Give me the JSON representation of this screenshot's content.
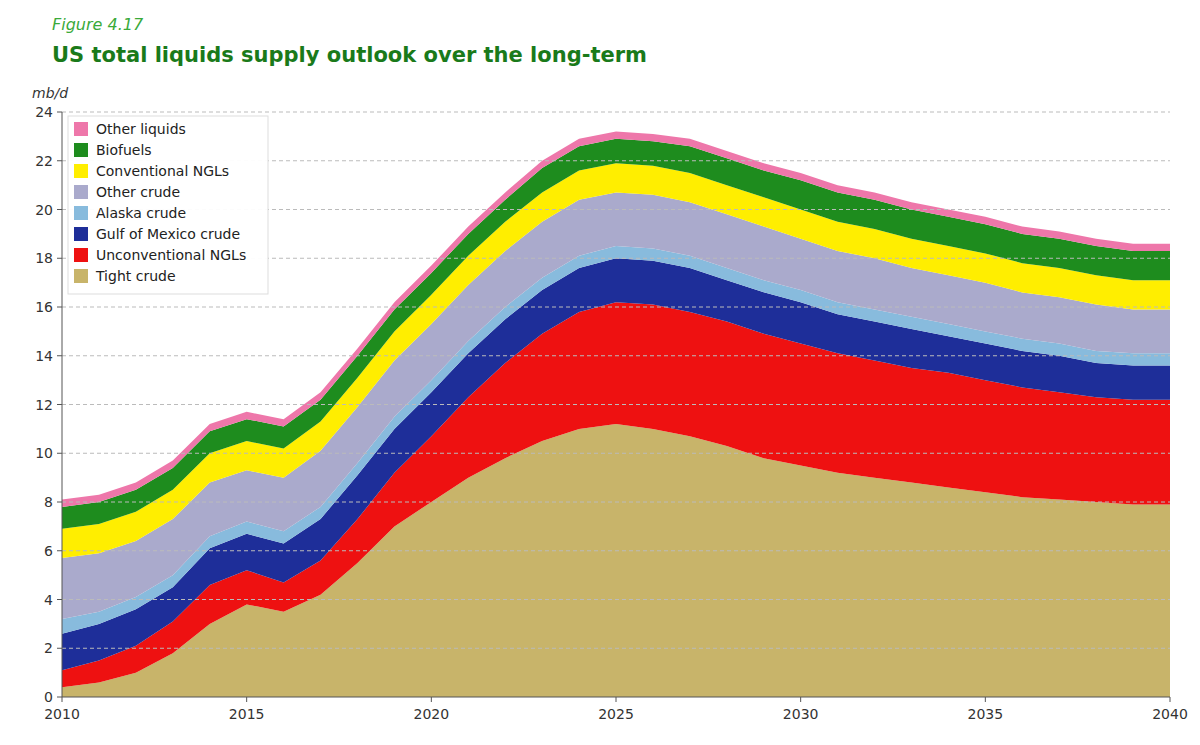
{
  "chart_data": {
    "type": "area",
    "stacked": true,
    "subtitle": "Figure 4.17",
    "title": "US total liquids supply outlook over the long-term",
    "y_label": "mb/d",
    "x": [
      2010,
      2011,
      2012,
      2013,
      2014,
      2015,
      2016,
      2017,
      2018,
      2019,
      2020,
      2021,
      2022,
      2023,
      2024,
      2025,
      2026,
      2027,
      2028,
      2029,
      2030,
      2031,
      2032,
      2033,
      2034,
      2035,
      2036,
      2037,
      2038,
      2039,
      2040
    ],
    "series": [
      {
        "name": "Tight crude",
        "color": "#C8B46A",
        "values": [
          0.4,
          0.6,
          1.0,
          1.8,
          3.0,
          3.8,
          3.5,
          4.2,
          5.5,
          7.0,
          8.0,
          9.0,
          9.8,
          10.5,
          11.0,
          11.2,
          11.0,
          10.7,
          10.3,
          9.8,
          9.5,
          9.2,
          9.0,
          8.8,
          8.6,
          8.4,
          8.2,
          8.1,
          8.0,
          7.9,
          7.9
        ]
      },
      {
        "name": "Unconventional NGLs",
        "color": "#EE1111",
        "values": [
          0.7,
          0.9,
          1.1,
          1.3,
          1.6,
          1.4,
          1.2,
          1.4,
          1.8,
          2.2,
          2.7,
          3.3,
          3.9,
          4.4,
          4.8,
          5.0,
          5.1,
          5.1,
          5.1,
          5.1,
          5.0,
          4.9,
          4.8,
          4.7,
          4.7,
          4.6,
          4.5,
          4.4,
          4.3,
          4.3,
          4.3
        ]
      },
      {
        "name": "Gulf of Mexico crude",
        "color": "#1E2E99",
        "values": [
          1.5,
          1.5,
          1.5,
          1.4,
          1.5,
          1.5,
          1.6,
          1.7,
          1.8,
          1.8,
          1.8,
          1.8,
          1.8,
          1.8,
          1.8,
          1.8,
          1.8,
          1.8,
          1.7,
          1.7,
          1.7,
          1.6,
          1.6,
          1.6,
          1.5,
          1.5,
          1.5,
          1.5,
          1.4,
          1.4,
          1.4
        ]
      },
      {
        "name": "Alaska crude",
        "color": "#88BBDD",
        "values": [
          0.6,
          0.5,
          0.5,
          0.5,
          0.5,
          0.5,
          0.5,
          0.5,
          0.5,
          0.5,
          0.5,
          0.5,
          0.5,
          0.5,
          0.5,
          0.5,
          0.5,
          0.5,
          0.5,
          0.5,
          0.5,
          0.5,
          0.5,
          0.5,
          0.5,
          0.5,
          0.5,
          0.5,
          0.5,
          0.5,
          0.5
        ]
      },
      {
        "name": "Other crude",
        "color": "#AAAACC",
        "values": [
          2.5,
          2.4,
          2.3,
          2.3,
          2.2,
          2.1,
          2.2,
          2.3,
          2.3,
          2.3,
          2.3,
          2.3,
          2.3,
          2.3,
          2.3,
          2.2,
          2.2,
          2.2,
          2.2,
          2.2,
          2.1,
          2.1,
          2.1,
          2.0,
          2.0,
          2.0,
          1.9,
          1.9,
          1.9,
          1.8,
          1.8
        ]
      },
      {
        "name": "Conventional NGLs",
        "color": "#FFEE00",
        "values": [
          1.2,
          1.2,
          1.2,
          1.2,
          1.2,
          1.2,
          1.2,
          1.2,
          1.2,
          1.2,
          1.2,
          1.2,
          1.2,
          1.2,
          1.2,
          1.2,
          1.2,
          1.2,
          1.2,
          1.2,
          1.2,
          1.2,
          1.2,
          1.2,
          1.2,
          1.2,
          1.2,
          1.2,
          1.2,
          1.2,
          1.2
        ]
      },
      {
        "name": "Biofuels",
        "color": "#1E8C1E",
        "values": [
          0.9,
          0.9,
          0.9,
          0.9,
          0.9,
          0.9,
          0.9,
          0.9,
          0.9,
          0.9,
          0.9,
          0.9,
          0.9,
          1.0,
          1.0,
          1.0,
          1.0,
          1.1,
          1.1,
          1.1,
          1.2,
          1.2,
          1.2,
          1.2,
          1.2,
          1.2,
          1.2,
          1.2,
          1.2,
          1.2,
          1.2
        ]
      },
      {
        "name": "Other liquids",
        "color": "#EE77AA",
        "values": [
          0.3,
          0.3,
          0.3,
          0.3,
          0.3,
          0.3,
          0.3,
          0.3,
          0.3,
          0.3,
          0.3,
          0.3,
          0.3,
          0.3,
          0.3,
          0.3,
          0.3,
          0.3,
          0.3,
          0.3,
          0.3,
          0.3,
          0.3,
          0.3,
          0.3,
          0.3,
          0.3,
          0.3,
          0.3,
          0.3,
          0.3
        ]
      }
    ],
    "xlim": [
      2010,
      2040
    ],
    "xticks": [
      2010,
      2015,
      2020,
      2025,
      2030,
      2035,
      2040
    ],
    "ylim": [
      0,
      24
    ],
    "yticks": [
      0,
      2,
      4,
      6,
      8,
      10,
      12,
      14,
      16,
      18,
      20,
      22,
      24
    ],
    "grid": true,
    "legend": "upper left"
  }
}
